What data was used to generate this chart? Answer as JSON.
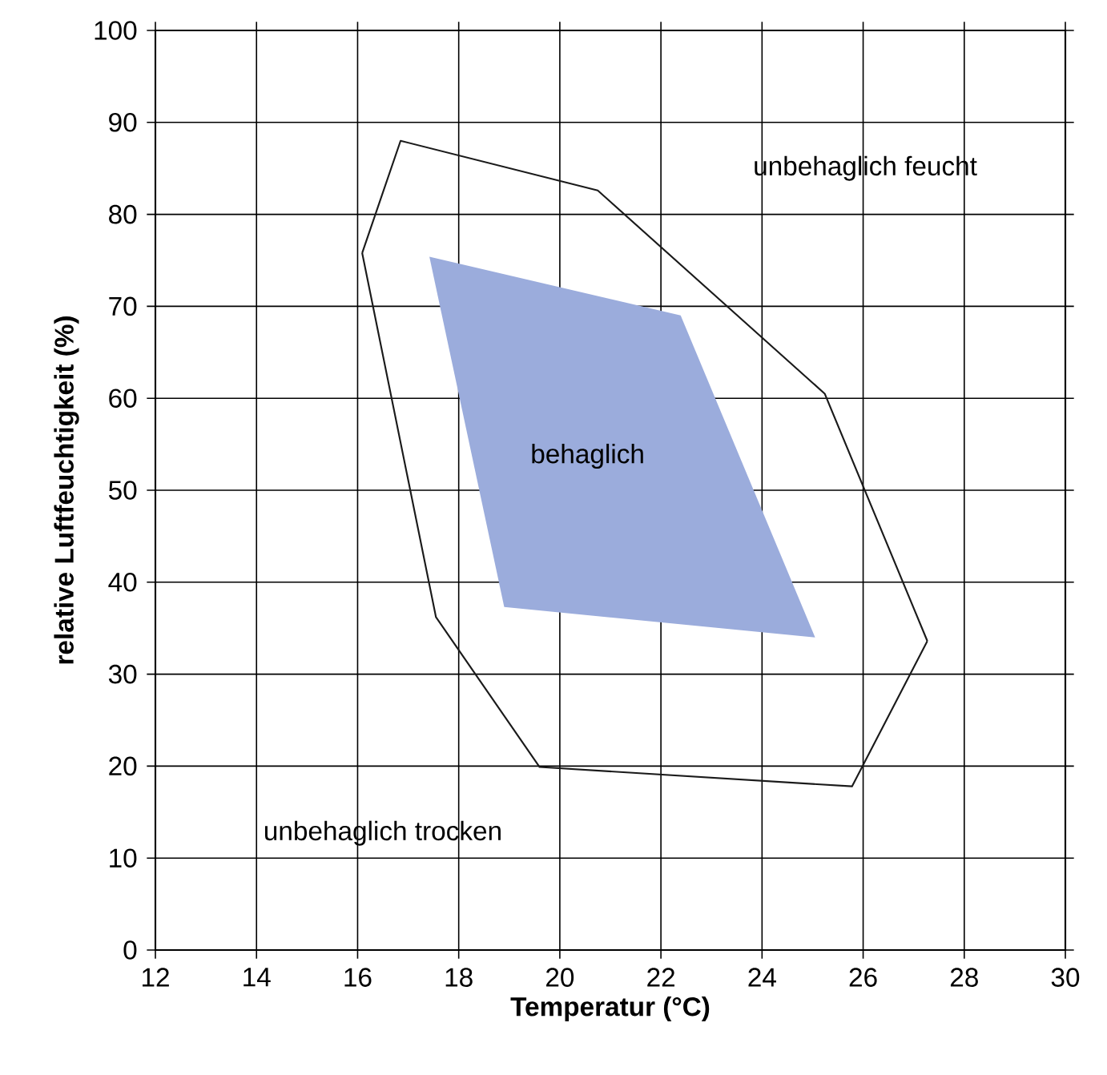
{
  "chart_data": {
    "type": "line",
    "xlabel": "Temperatur  (°C)",
    "ylabel": "relative Luftfeuchtigkeit (%)",
    "xlim": [
      12,
      30
    ],
    "ylim": [
      0,
      100
    ],
    "xticks": [
      12,
      14,
      16,
      18,
      20,
      22,
      24,
      26,
      28,
      30
    ],
    "yticks": [
      0,
      10,
      20,
      30,
      40,
      50,
      60,
      70,
      80,
      90,
      100
    ],
    "grid": true,
    "series": [
      {
        "color": "#1a1a1a",
        "x": [
          16.09,
          16.85,
          20.75,
          25.24,
          27.27
        ],
        "values": [
          75.8,
          88,
          82.6,
          60.5,
          33.6
        ]
      },
      {
        "color": "#1a1a1a",
        "x": [
          16.09,
          17.55,
          19.6,
          25.78,
          27.27
        ],
        "values": [
          75.8,
          36.2,
          19.9,
          17.8,
          33.6
        ]
      },
      {
        "type": "area",
        "color": "#9bacdc",
        "x": [
          17.42,
          22.39,
          25.05,
          18.9,
          17.42
        ],
        "values": [
          75.4,
          69,
          34,
          37.3,
          75.4
        ]
      }
    ],
    "annotations": [
      "unbehaglich feucht",
      "behaglich",
      "unbehaglich trocken"
    ]
  }
}
